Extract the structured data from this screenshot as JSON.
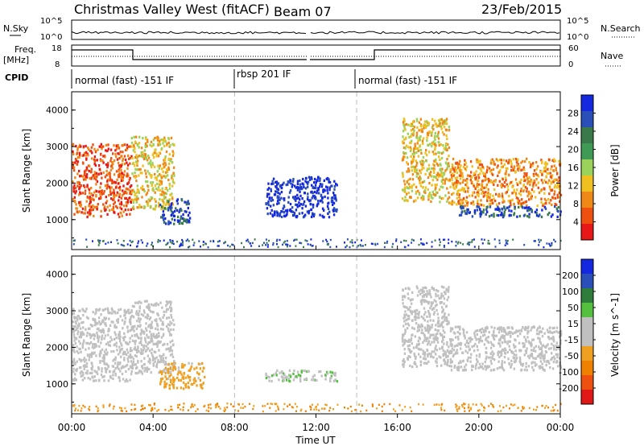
{
  "header": {
    "station": "Christmas Valley West (fitACF)",
    "beam": "Beam 07",
    "date": "23/Feb/2015"
  },
  "labels": {
    "nsky": "N.Sky",
    "nsearch": "N.Search",
    "freq": "Freq.",
    "freq_unit": "[MHz]",
    "nave": "Nave",
    "cpid": "CPID"
  },
  "noise_panel": {
    "left_ticks": [
      "10^5",
      "10^0"
    ],
    "right_ticks": [
      "10^5",
      "10^0"
    ]
  },
  "freq_panel": {
    "left_ticks": [
      "18",
      "8"
    ],
    "right_ticks": [
      "60",
      "0"
    ]
  },
  "cpid_segments": [
    "normal (fast) -151 IF",
    "rbsp 201 IF",
    "normal (fast) -151 IF"
  ],
  "colors": {
    "power_scale": [
      "#1428e0",
      "#2a4fb8",
      "#3a7a4a",
      "#3f9a55",
      "#9ad25a",
      "#f0c020",
      "#f08818",
      "#ee5010",
      "#e81818"
    ],
    "velocity_scale": [
      "#1428e0",
      "#2a4fb8",
      "#2f7d3a",
      "#55c040",
      "#c0c0c0",
      "#c0c0c0",
      "#f0a020",
      "#f08000",
      "#ee5010",
      "#e01818"
    ]
  },
  "chart_data": [
    {
      "type": "heatmap",
      "panel": "power",
      "ylabel": "Slant Range [km]",
      "xlim": [
        0,
        24
      ],
      "ylim": [
        180,
        4500
      ],
      "yticks": [
        "1000",
        "2000",
        "3000",
        "4000"
      ],
      "colorbar_label": "Power [dB]",
      "colorbar_ticks": [
        "28",
        "24",
        "20",
        "16",
        "12",
        "8",
        "4"
      ],
      "colorbar_range": [
        0,
        32
      ],
      "echo_regions": [
        {
          "t0": 0.0,
          "t1": 2.9,
          "r0": 1100,
          "r1": 3100,
          "level": 7
        },
        {
          "t0": 2.9,
          "t1": 5.0,
          "r0": 1300,
          "r1": 3300,
          "level": 5
        },
        {
          "t0": 4.3,
          "t1": 5.8,
          "r0": 900,
          "r1": 1600,
          "level": 1
        },
        {
          "t0": 9.5,
          "t1": 13.0,
          "r0": 1100,
          "r1": 2200,
          "level": 0
        },
        {
          "t0": 16.2,
          "t1": 18.5,
          "r0": 1500,
          "r1": 3800,
          "level": 5
        },
        {
          "t0": 18.5,
          "t1": 24.0,
          "r0": 1400,
          "r1": 2700,
          "level": 6
        },
        {
          "t0": 19.0,
          "t1": 24.0,
          "r0": 1100,
          "r1": 1400,
          "level": 1
        }
      ]
    },
    {
      "type": "heatmap",
      "panel": "velocity",
      "ylabel": "Slant Range [km]",
      "xlim": [
        0,
        24
      ],
      "ylim": [
        180,
        4500
      ],
      "yticks": [
        "1000",
        "2000",
        "3000",
        "4000"
      ],
      "colorbar_label": "Velocity [m s^-1]",
      "colorbar_ticks": [
        "200",
        "100",
        "50",
        "15",
        "-15",
        "-50",
        "-100",
        "-200"
      ],
      "colorbar_range": [
        -250,
        250
      ],
      "echo_regions": [
        {
          "t0": 0.0,
          "t1": 2.9,
          "r0": 1100,
          "r1": 3100,
          "value": 0
        },
        {
          "t0": 2.9,
          "t1": 5.0,
          "r0": 1300,
          "r1": 3300,
          "value": -10
        },
        {
          "t0": 4.3,
          "t1": 6.5,
          "r0": 900,
          "r1": 1600,
          "value": -80
        },
        {
          "t0": 9.5,
          "t1": 13.0,
          "r0": 1100,
          "r1": 1400,
          "value": 40
        },
        {
          "t0": 16.2,
          "t1": 18.5,
          "r0": 1500,
          "r1": 3700,
          "value": 5
        },
        {
          "t0": 18.5,
          "t1": 24.0,
          "r0": 1400,
          "r1": 2600,
          "value": 0
        }
      ]
    }
  ],
  "time_axis": {
    "label": "Time UT",
    "ticks": [
      "00:00",
      "04:00",
      "08:00",
      "12:00",
      "16:00",
      "20:00",
      "00:00"
    ],
    "tick_hours": [
      0,
      4,
      8,
      12,
      16,
      20,
      24
    ]
  }
}
